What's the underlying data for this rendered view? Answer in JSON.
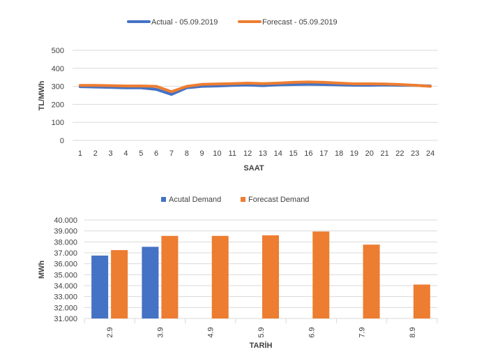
{
  "chart_data": [
    {
      "type": "line",
      "title": "",
      "xlabel": "SAAT",
      "ylabel": "TL/MWh",
      "ylim": [
        0,
        500
      ],
      "yticks": [
        "0",
        "100",
        "200",
        "300",
        "400",
        "500"
      ],
      "categories": [
        "1",
        "2",
        "3",
        "4",
        "5",
        "6",
        "7",
        "8",
        "9",
        "10",
        "11",
        "12",
        "13",
        "14",
        "15",
        "16",
        "17",
        "18",
        "19",
        "20",
        "21",
        "22",
        "23",
        "24"
      ],
      "grid": true,
      "legend_position": "top",
      "series": [
        {
          "name": "Actual - 05.09.2019",
          "color": "#4472C4",
          "values": [
            298,
            296,
            294,
            292,
            292,
            283,
            255,
            292,
            300,
            302,
            305,
            307,
            304,
            308,
            310,
            311,
            310,
            308,
            306,
            306,
            307,
            306,
            305,
            302
          ]
        },
        {
          "name": "Forecast - 05.09.2019",
          "color": "#ED7D31",
          "values": [
            305,
            305,
            304,
            302,
            302,
            300,
            270,
            300,
            311,
            313,
            315,
            318,
            315,
            318,
            322,
            324,
            322,
            318,
            314,
            314,
            313,
            310,
            306,
            300
          ]
        }
      ]
    },
    {
      "type": "bar",
      "title": "",
      "xlabel": "TARİH",
      "ylabel": "MWh",
      "ylim": [
        31000,
        40000
      ],
      "yticks": [
        "31.000",
        "32.000",
        "33.000",
        "34.000",
        "35.000",
        "36.000",
        "37.000",
        "38.000",
        "39.000",
        "40.000"
      ],
      "categories": [
        "2.9",
        "3.9",
        "4.9",
        "5.9",
        "6.9",
        "7.9",
        "8.9"
      ],
      "grid": true,
      "legend_position": "top",
      "series": [
        {
          "name": "Acutal Demand",
          "color": "#4472C4",
          "values": [
            36750,
            37550,
            null,
            null,
            null,
            null,
            null
          ]
        },
        {
          "name": "Forecast Demand",
          "color": "#ED7D31",
          "values": [
            37250,
            38550,
            38550,
            38600,
            38950,
            37750,
            34100
          ]
        }
      ]
    }
  ]
}
